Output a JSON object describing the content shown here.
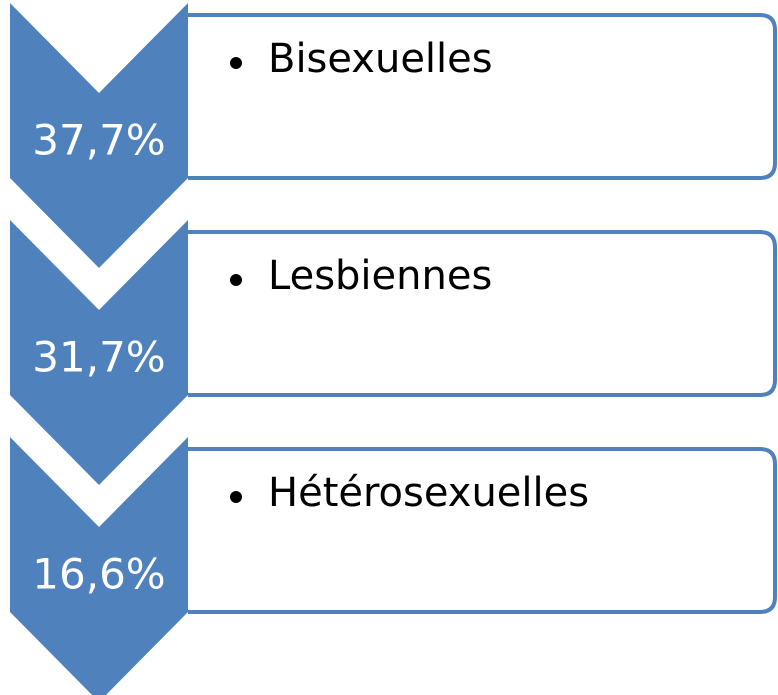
{
  "items": [
    {
      "value": "37,7%",
      "label": "Bisexuelles"
    },
    {
      "value": "31,7%",
      "label": "Lesbiennes"
    },
    {
      "value": "16,6%",
      "label": "Hétérosexuelles"
    }
  ]
}
